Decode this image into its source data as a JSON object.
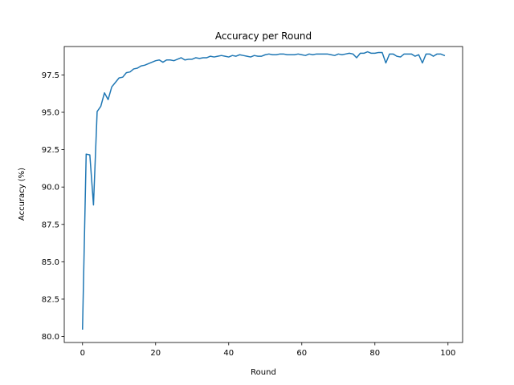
{
  "chart_data": {
    "type": "line",
    "title": "Accuracy per Round",
    "xlabel": "Round",
    "ylabel": "Accuracy (%)",
    "xlim": [
      -5,
      104
    ],
    "ylim": [
      79.6,
      99.4
    ],
    "xticks": [
      0,
      20,
      40,
      60,
      80,
      100
    ],
    "yticks": [
      80.0,
      82.5,
      85.0,
      87.5,
      90.0,
      92.5,
      95.0,
      97.5
    ],
    "grid": false,
    "series": [
      {
        "color": "#1f77b4",
        "x": [
          0,
          1,
          2,
          3,
          4,
          5,
          6,
          7,
          8,
          9,
          10,
          11,
          12,
          13,
          14,
          15,
          16,
          17,
          18,
          19,
          20,
          21,
          22,
          23,
          24,
          25,
          26,
          27,
          28,
          29,
          30,
          31,
          32,
          33,
          34,
          35,
          36,
          37,
          38,
          39,
          40,
          41,
          42,
          43,
          44,
          45,
          46,
          47,
          48,
          49,
          50,
          51,
          52,
          53,
          54,
          55,
          56,
          57,
          58,
          59,
          60,
          61,
          62,
          63,
          64,
          65,
          66,
          67,
          68,
          69,
          70,
          71,
          72,
          73,
          74,
          75,
          76,
          77,
          78,
          79,
          80,
          81,
          82,
          83,
          84,
          85,
          86,
          87,
          88,
          89,
          90,
          91,
          92,
          93,
          94,
          95,
          96,
          97,
          98,
          99
        ],
        "values": [
          80.5,
          92.2,
          92.15,
          88.8,
          95.05,
          95.4,
          96.3,
          95.85,
          96.7,
          97.0,
          97.3,
          97.35,
          97.65,
          97.7,
          97.9,
          97.95,
          98.1,
          98.15,
          98.25,
          98.35,
          98.45,
          98.5,
          98.35,
          98.5,
          98.5,
          98.45,
          98.55,
          98.65,
          98.5,
          98.55,
          98.55,
          98.65,
          98.6,
          98.65,
          98.65,
          98.75,
          98.7,
          98.75,
          98.8,
          98.75,
          98.7,
          98.8,
          98.75,
          98.85,
          98.8,
          98.75,
          98.7,
          98.8,
          98.75,
          98.75,
          98.85,
          98.9,
          98.85,
          98.85,
          98.9,
          98.9,
          98.85,
          98.85,
          98.85,
          98.9,
          98.85,
          98.8,
          98.9,
          98.85,
          98.9,
          98.9,
          98.9,
          98.9,
          98.85,
          98.8,
          98.9,
          98.85,
          98.9,
          98.95,
          98.9,
          98.65,
          98.95,
          98.95,
          99.05,
          98.95,
          98.95,
          99.0,
          99.0,
          98.3,
          98.9,
          98.9,
          98.75,
          98.7,
          98.9,
          98.9,
          98.9,
          98.75,
          98.85,
          98.3,
          98.9,
          98.9,
          98.75,
          98.9,
          98.9,
          98.8
        ]
      }
    ]
  }
}
